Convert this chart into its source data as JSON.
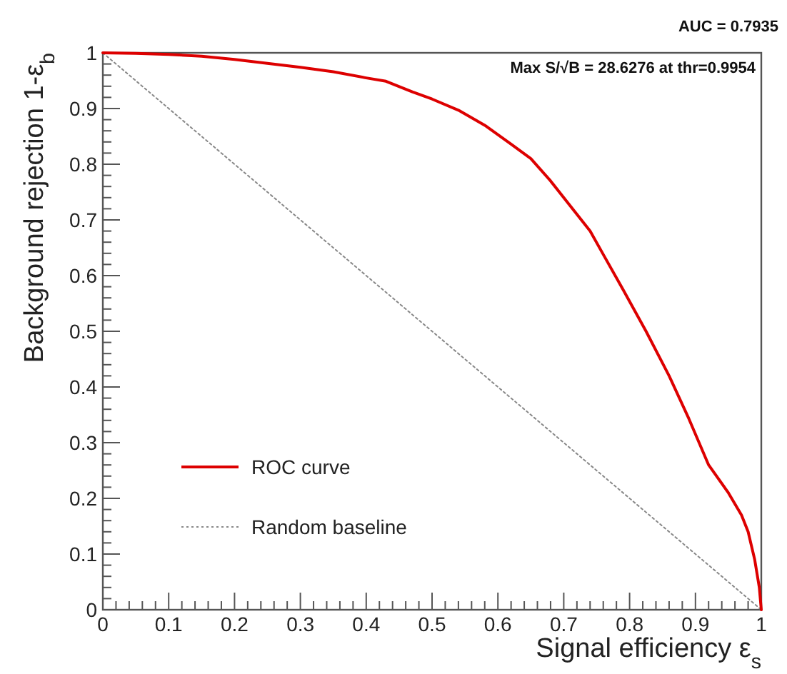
{
  "chart_data": {
    "type": "line",
    "xlabel": "Signal efficiency ε$_{s}$",
    "ylabel": "Background rejection 1-ε$_{b}$",
    "annotations": [
      "AUC = 0.7935",
      "Max S/√B = 28.6276 at thr=0.9954"
    ],
    "xlim": [
      0,
      1
    ],
    "ylim": [
      0,
      1
    ],
    "xticks": [
      0,
      {
        "value": 0.02,
        "label": null
      },
      {
        "value": 0.04,
        "label": null
      },
      {
        "value": 0.06,
        "label": null
      },
      {
        "value": 0.08,
        "label": null
      },
      0.1,
      {
        "value": 0.12,
        "label": null
      },
      {
        "value": 0.14,
        "label": null
      },
      {
        "value": 0.16,
        "label": null
      },
      {
        "value": 0.18,
        "label": null
      },
      0.2,
      {
        "value": 0.22,
        "label": null
      },
      {
        "value": 0.24,
        "label": null
      },
      {
        "value": 0.26,
        "label": null
      },
      {
        "value": 0.28,
        "label": null
      },
      0.3,
      {
        "value": 0.32,
        "label": null
      },
      {
        "value": 0.34,
        "label": null
      },
      {
        "value": 0.36,
        "label": null
      },
      {
        "value": 0.38,
        "label": null
      },
      0.4,
      {
        "value": 0.42,
        "label": null
      },
      {
        "value": 0.44,
        "label": null
      },
      {
        "value": 0.46,
        "label": null
      },
      {
        "value": 0.48,
        "label": null
      },
      0.5,
      {
        "value": 0.52,
        "label": null
      },
      {
        "value": 0.54,
        "label": null
      },
      {
        "value": 0.56,
        "label": null
      },
      {
        "value": 0.58,
        "label": null
      },
      0.6,
      {
        "value": 0.62,
        "label": null
      },
      {
        "value": 0.64,
        "label": null
      },
      {
        "value": 0.66,
        "label": null
      },
      {
        "value": 0.68,
        "label": null
      },
      0.7,
      {
        "value": 0.72,
        "label": null
      },
      {
        "value": 0.74,
        "label": null
      },
      {
        "value": 0.76,
        "label": null
      },
      {
        "value": 0.78,
        "label": null
      },
      0.8,
      {
        "value": 0.82,
        "label": null
      },
      {
        "value": 0.84,
        "label": null
      },
      {
        "value": 0.86,
        "label": null
      },
      {
        "value": 0.88,
        "label": null
      },
      0.9,
      {
        "value": 0.92,
        "label": null
      },
      {
        "value": 0.94,
        "label": null
      },
      {
        "value": 0.96,
        "label": null
      },
      {
        "value": 0.98,
        "label": null
      },
      1
    ],
    "yticks": [
      0,
      {
        "value": 0.02,
        "label": null
      },
      {
        "value": 0.04,
        "label": null
      },
      {
        "value": 0.06,
        "label": null
      },
      {
        "value": 0.08,
        "label": null
      },
      0.1,
      {
        "value": 0.12,
        "label": null
      },
      {
        "value": 0.14,
        "label": null
      },
      {
        "value": 0.16,
        "label": null
      },
      {
        "value": 0.18,
        "label": null
      },
      0.2,
      {
        "value": 0.22,
        "label": null
      },
      {
        "value": 0.24,
        "label": null
      },
      {
        "value": 0.26,
        "label": null
      },
      {
        "value": 0.28,
        "label": null
      },
      0.3,
      {
        "value": 0.32,
        "label": null
      },
      {
        "value": 0.34,
        "label": null
      },
      {
        "value": 0.36,
        "label": null
      },
      {
        "value": 0.38,
        "label": null
      },
      0.4,
      {
        "value": 0.42,
        "label": null
      },
      {
        "value": 0.44,
        "label": null
      },
      {
        "value": 0.46,
        "label": null
      },
      {
        "value": 0.48,
        "label": null
      },
      0.5,
      {
        "value": 0.52,
        "label": null
      },
      {
        "value": 0.54,
        "label": null
      },
      {
        "value": 0.56,
        "label": null
      },
      {
        "value": 0.58,
        "label": null
      },
      0.6,
      {
        "value": 0.62,
        "label": null
      },
      {
        "value": 0.64,
        "label": null
      },
      {
        "value": 0.66,
        "label": null
      },
      {
        "value": 0.68,
        "label": null
      },
      0.7,
      {
        "value": 0.72,
        "label": null
      },
      {
        "value": 0.74,
        "label": null
      },
      {
        "value": 0.76,
        "label": null
      },
      {
        "value": 0.78,
        "label": null
      },
      0.8,
      {
        "value": 0.82,
        "label": null
      },
      {
        "value": 0.84,
        "label": null
      },
      {
        "value": 0.86,
        "label": null
      },
      {
        "value": 0.88,
        "label": null
      },
      0.9,
      {
        "value": 0.92,
        "label": null
      },
      {
        "value": 0.94,
        "label": null
      },
      {
        "value": 0.96,
        "label": null
      },
      {
        "value": 0.98,
        "label": null
      },
      1
    ],
    "legend": "bottom left",
    "series": [
      {
        "name": "ROC curve",
        "color": "#dd0000",
        "line_style": "solid",
        "x": [
          0,
          0.05,
          0.1,
          0.15,
          0.2,
          0.25,
          0.3,
          0.35,
          0.4,
          0.43,
          0.47,
          0.5,
          0.54,
          0.58,
          0.62,
          0.65,
          0.68,
          0.71,
          0.74,
          0.76,
          0.79,
          0.825,
          0.86,
          0.89,
          0.92,
          0.95,
          0.97,
          0.98,
          0.99,
          0.997,
          1
        ],
        "values": [
          1,
          0.999,
          0.997,
          0.994,
          0.988,
          0.981,
          0.974,
          0.966,
          0.955,
          0.949,
          0.93,
          0.917,
          0.897,
          0.87,
          0.836,
          0.81,
          0.77,
          0.725,
          0.68,
          0.638,
          0.575,
          0.5,
          0.42,
          0.343,
          0.26,
          0.21,
          0.17,
          0.14,
          0.09,
          0.04,
          0
        ]
      },
      {
        "name": "Random baseline",
        "color": "#888888",
        "line_style": "dotted",
        "x": [
          0,
          1
        ],
        "values": [
          1,
          0
        ]
      }
    ]
  }
}
